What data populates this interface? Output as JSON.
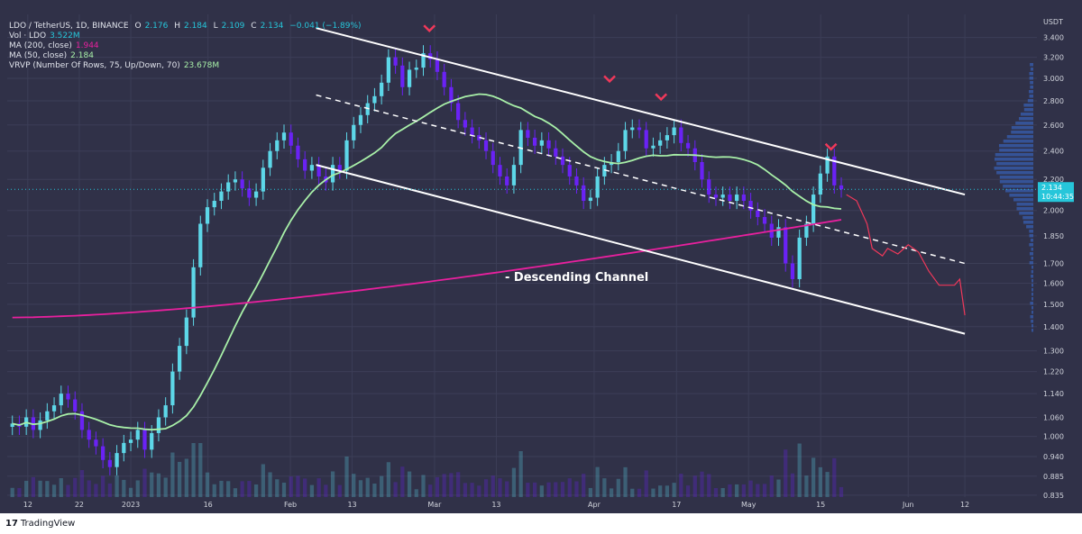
{
  "legend": {
    "symbol": "LDO / TetherUS, 1D, BINANCE",
    "o_label": "O",
    "o": "2.176",
    "h_label": "H",
    "h": "2.184",
    "l_label": "L",
    "l": "2.109",
    "c_label": "C",
    "c": "2.134",
    "change": "−0.041 (−1.89%)",
    "vol_label": "Vol · LDO",
    "vol": "3.522M",
    "ma200_label": "MA (200, close)",
    "ma200": "1.944",
    "ma50_label": "MA (50, close)",
    "ma50": "2.184",
    "vrvp_label": "VRVP (Number Of Rows, 75, Up/Down, 70)",
    "vrvp": "23.678M"
  },
  "annotation": "- Descending Channel",
  "footer": {
    "logo_text": "TradingView"
  },
  "colors": {
    "background": "#303148",
    "grid": "#3c3e57",
    "up_candle": "#5dd7e8",
    "down_candle": "#6a22f5",
    "ma50": "#a8f0a8",
    "ma200": "#e8209e",
    "channel": "#ffffff",
    "projection": "#f0385a",
    "marker": "#f0385a",
    "price_label": "#26c6da"
  },
  "chart_data": {
    "type": "candlestick",
    "title": "LDO / TetherUS, 1D, BINANCE",
    "currency_label": "USDT",
    "y_scale": "log",
    "ylim": [
      0.83,
      3.65
    ],
    "y_ticks": [
      3.4,
      3.2,
      3.0,
      2.8,
      2.6,
      2.4,
      2.2,
      2.0,
      1.85,
      1.7,
      1.6,
      1.5,
      1.4,
      1.3,
      1.22,
      1.14,
      1.06,
      1.0,
      0.94,
      0.885,
      0.835
    ],
    "y_tick_labels": [
      "3.400",
      "3.200",
      "3.000",
      "2.800",
      "2.600",
      "2.400",
      "2.200",
      "2.000",
      "1.850",
      "1.700",
      "1.600",
      "1.500",
      "1.400",
      "1.300",
      "1.220",
      "1.140",
      "1.060",
      "1.000",
      "0.940",
      "0.885",
      "0.835"
    ],
    "last_price": {
      "value": 2.134,
      "label": "2.134",
      "countdown": "10:44:35"
    },
    "x_ticks": [
      {
        "date": "2022-12-12",
        "label": "12"
      },
      {
        "date": "2022-12-22",
        "label": "22"
      },
      {
        "date": "2023-01-01",
        "label": "2023"
      },
      {
        "date": "2023-01-16",
        "label": "16"
      },
      {
        "date": "2023-02-01",
        "label": "Feb"
      },
      {
        "date": "2023-02-13",
        "label": "13"
      },
      {
        "date": "2023-03-01",
        "label": "Mar"
      },
      {
        "date": "2023-03-13",
        "label": "13"
      },
      {
        "date": "2023-04-01",
        "label": "Apr"
      },
      {
        "date": "2023-04-17",
        "label": "17"
      },
      {
        "date": "2023-05-01",
        "label": "May"
      },
      {
        "date": "2023-05-15",
        "label": "15"
      },
      {
        "date": "2023-06-01",
        "label": "Jun"
      },
      {
        "date": "2023-06-12",
        "label": "12"
      }
    ],
    "x_range": [
      "2022-12-08",
      "2023-06-26"
    ],
    "candle_closes": [
      1.04,
      1.03,
      1.06,
      1.02,
      1.05,
      1.08,
      1.1,
      1.14,
      1.12,
      1.08,
      1.02,
      0.99,
      0.97,
      0.93,
      0.91,
      0.95,
      0.98,
      0.99,
      1.02,
      0.96,
      1.01,
      1.06,
      1.1,
      1.22,
      1.32,
      1.44,
      1.68,
      1.92,
      2.02,
      2.06,
      2.12,
      2.18,
      2.2,
      2.14,
      2.08,
      2.12,
      2.28,
      2.4,
      2.48,
      2.54,
      2.44,
      2.34,
      2.26,
      2.3,
      2.22,
      2.18,
      2.3,
      2.26,
      2.48,
      2.6,
      2.68,
      2.78,
      2.84,
      2.96,
      3.2,
      3.12,
      2.92,
      3.08,
      3.1,
      3.24,
      3.18,
      3.06,
      2.92,
      2.78,
      2.64,
      2.58,
      2.52,
      2.48,
      2.4,
      2.3,
      2.22,
      2.16,
      2.3,
      2.56,
      2.5,
      2.44,
      2.48,
      2.42,
      2.36,
      2.3,
      2.22,
      2.16,
      2.06,
      2.08,
      2.22,
      2.3,
      2.32,
      2.4,
      2.56,
      2.58,
      2.56,
      2.42,
      2.44,
      2.48,
      2.52,
      2.58,
      2.46,
      2.42,
      2.32,
      2.2,
      2.1,
      2.08,
      2.1,
      2.06,
      2.1,
      2.06,
      2.0,
      1.96,
      1.92,
      1.84,
      1.9,
      1.7,
      1.62,
      1.84,
      1.92,
      2.1,
      2.24,
      2.36,
      2.16,
      2.134
    ],
    "volume_note": "volume histogram in bottom band",
    "series": [
      {
        "name": "MA (50, close)",
        "value": 2.184
      },
      {
        "name": "MA (200, close)",
        "value": 1.944
      }
    ],
    "channel": {
      "upper": [
        {
          "date": "2023-02-06",
          "value": 3.5
        },
        {
          "date": "2023-06-12",
          "value": 2.1
        }
      ],
      "middle": [
        {
          "date": "2023-02-06",
          "value": 2.85
        },
        {
          "date": "2023-06-12",
          "value": 1.7
        }
      ],
      "lower": [
        {
          "date": "2023-02-06",
          "value": 2.3
        },
        {
          "date": "2023-06-12",
          "value": 1.37
        }
      ]
    },
    "peak_markers": [
      "2023-02-28",
      "2023-04-04",
      "2023-04-14",
      "2023-05-17"
    ],
    "projection": [
      {
        "date": "2023-05-20",
        "value": 2.1
      },
      {
        "date": "2023-05-22",
        "value": 2.06
      },
      {
        "date": "2023-05-24",
        "value": 1.92
      },
      {
        "date": "2023-05-25",
        "value": 1.78
      },
      {
        "date": "2023-05-27",
        "value": 1.74
      },
      {
        "date": "2023-05-28",
        "value": 1.78
      },
      {
        "date": "2023-05-30",
        "value": 1.75
      },
      {
        "date": "2023-06-01",
        "value": 1.8
      },
      {
        "date": "2023-06-03",
        "value": 1.76
      },
      {
        "date": "2023-06-05",
        "value": 1.66
      },
      {
        "date": "2023-06-07",
        "value": 1.59
      },
      {
        "date": "2023-06-10",
        "value": 1.59
      },
      {
        "date": "2023-06-11",
        "value": 1.62
      },
      {
        "date": "2023-06-12",
        "value": 1.45
      }
    ]
  }
}
